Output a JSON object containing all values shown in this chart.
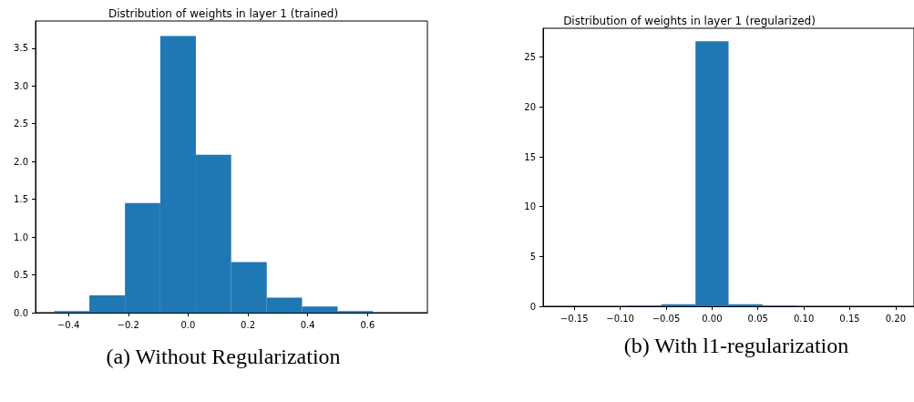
{
  "chart_data": [
    {
      "type": "histogram",
      "title": "Distribution of weights in layer 1 (trained)",
      "color": "#1f77b4",
      "bins": [
        -0.448,
        -0.33,
        -0.211,
        -0.093,
        0.026,
        0.144,
        0.263,
        0.381,
        0.5,
        0.618
      ],
      "values": [
        0.02,
        0.23,
        1.45,
        3.66,
        2.09,
        0.67,
        0.2,
        0.08,
        0.02
      ],
      "xlim": [
        -0.51,
        0.8
      ],
      "ylim": [
        0,
        3.86
      ],
      "xticks": [
        {
          "value": -0.4,
          "label": "−0.4"
        },
        {
          "value": -0.2,
          "label": "−0.2"
        },
        {
          "value": 0,
          "label": "0.0"
        },
        {
          "value": 0.2,
          "label": "0.2"
        },
        {
          "value": 0.4,
          "label": "0.4"
        },
        {
          "value": 0.6,
          "label": "0.6"
        }
      ],
      "yticks": [
        {
          "value": 0,
          "label": "0.0"
        },
        {
          "value": 0.5,
          "label": "0.5"
        },
        {
          "value": 1,
          "label": "1.0"
        },
        {
          "value": 1.5,
          "label": "1.5"
        },
        {
          "value": 2,
          "label": "2.0"
        },
        {
          "value": 2.5,
          "label": "2.5"
        },
        {
          "value": 3,
          "label": "3.0"
        },
        {
          "value": 3.5,
          "label": "3.5"
        }
      ],
      "grid": false,
      "annotations": [
        "(a) Without Regularization"
      ]
    },
    {
      "type": "histogram",
      "title": "Distribution of weights in layer 1 (regularized)",
      "color": "#1f77b4",
      "bins": [
        -0.092,
        -0.055,
        -0.018,
        0.018,
        0.055,
        0.092
      ],
      "values": [
        0.1,
        0.2,
        26.6,
        0.2,
        0.1
      ],
      "xlim": [
        -0.184,
        0.22
      ],
      "ylim": [
        0,
        27.9
      ],
      "xticks": [
        {
          "value": -0.15,
          "label": "−0.15"
        },
        {
          "value": -0.1,
          "label": "−0.10"
        },
        {
          "value": -0.05,
          "label": "−0.05"
        },
        {
          "value": 0,
          "label": "0.00"
        },
        {
          "value": 0.05,
          "label": "0.05"
        },
        {
          "value": 0.1,
          "label": "0.10"
        },
        {
          "value": 0.15,
          "label": "0.15"
        },
        {
          "value": 0.2,
          "label": "0.20"
        }
      ],
      "yticks": [
        0,
        5,
        10,
        15,
        20,
        25
      ],
      "grid": false,
      "annotations": [
        "(b) With l1-regularization"
      ]
    }
  ]
}
